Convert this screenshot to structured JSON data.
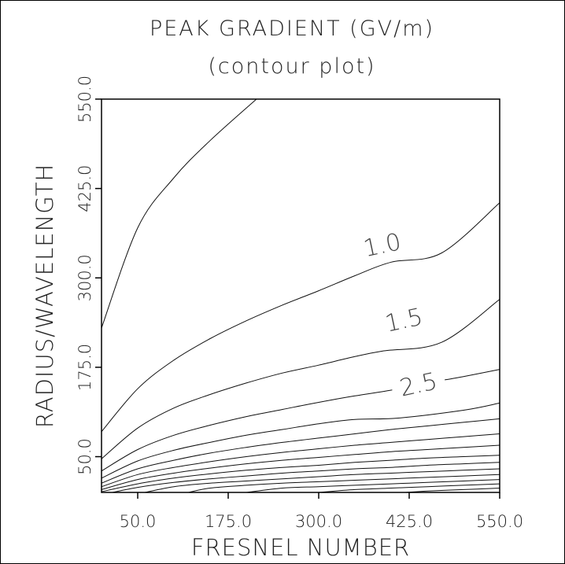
{
  "chart_data": {
    "type": "contour",
    "title": "PEAK GRADIENT (GV/m)",
    "subtitle": "(contour plot)",
    "xlabel": "FRESNEL NUMBER",
    "ylabel": "RADIUS/WAVELENGTH",
    "xlim": [
      0,
      550
    ],
    "ylim": [
      0,
      550
    ],
    "xticks": [
      "50.0",
      "175.0",
      "300.0",
      "425.0",
      "550.0"
    ],
    "yticks": [
      "50.0",
      "175.0",
      "300.0",
      "425.0",
      "550.0"
    ],
    "xtick_values": [
      50,
      175,
      300,
      425,
      550
    ],
    "ytick_values": [
      50,
      175,
      300,
      425,
      550
    ],
    "grid": false,
    "contour_labels": [
      {
        "text": "1.0",
        "x": 390,
        "y": 335
      },
      {
        "text": "1.5",
        "x": 420,
        "y": 230
      },
      {
        "text": "2.5",
        "x": 440,
        "y": 140
      }
    ],
    "contours": [
      {
        "points": [
          [
            0,
            230
          ],
          [
            50,
            370
          ],
          [
            100,
            440
          ],
          [
            150,
            492
          ],
          [
            214,
            550
          ]
        ]
      },
      {
        "points": [
          [
            0,
            85
          ],
          [
            50,
            145
          ],
          [
            100,
            185
          ],
          [
            150,
            215
          ],
          [
            200,
            240
          ],
          [
            250,
            262
          ],
          [
            300,
            282
          ],
          [
            350,
            303
          ],
          [
            400,
            322
          ],
          [
            470,
            335
          ],
          [
            550,
            405
          ]
        ]
      },
      {
        "points": [
          [
            0,
            47
          ],
          [
            50,
            90
          ],
          [
            100,
            118
          ],
          [
            150,
            137
          ],
          [
            200,
            153
          ],
          [
            250,
            167
          ],
          [
            300,
            178
          ],
          [
            350,
            190
          ],
          [
            390,
            198
          ],
          [
            470,
            210
          ],
          [
            550,
            270
          ]
        ]
      },
      {
        "points": [
          [
            0,
            30
          ],
          [
            50,
            60
          ],
          [
            100,
            80
          ],
          [
            150,
            94
          ],
          [
            200,
            106
          ],
          [
            250,
            116
          ],
          [
            300,
            126
          ],
          [
            350,
            135
          ],
          [
            400,
            143
          ],
          [
            450,
            153
          ],
          [
            500,
            162
          ],
          [
            550,
            172
          ]
        ]
      },
      {
        "points": [
          [
            0,
            20
          ],
          [
            50,
            44
          ],
          [
            100,
            59
          ],
          [
            150,
            70
          ],
          [
            200,
            80
          ],
          [
            250,
            88
          ],
          [
            300,
            96
          ],
          [
            350,
            102
          ],
          [
            410,
            104
          ],
          [
            500,
            115
          ],
          [
            550,
            125
          ]
        ]
      },
      {
        "points": [
          [
            0,
            13
          ],
          [
            50,
            33
          ],
          [
            100,
            45
          ],
          [
            150,
            55
          ],
          [
            200,
            63
          ],
          [
            250,
            70
          ],
          [
            300,
            76
          ],
          [
            350,
            82
          ],
          [
            400,
            88
          ],
          [
            450,
            93
          ],
          [
            500,
            98
          ],
          [
            550,
            103
          ]
        ]
      },
      {
        "points": [
          [
            0,
            8
          ],
          [
            50,
            25
          ],
          [
            100,
            35
          ],
          [
            150,
            43
          ],
          [
            200,
            50
          ],
          [
            250,
            56
          ],
          [
            300,
            61
          ],
          [
            350,
            66
          ],
          [
            400,
            70
          ],
          [
            450,
            74
          ],
          [
            500,
            78
          ],
          [
            550,
            82
          ]
        ]
      },
      {
        "points": [
          [
            0,
            4
          ],
          [
            50,
            18
          ],
          [
            100,
            27
          ],
          [
            150,
            34
          ],
          [
            200,
            40
          ],
          [
            250,
            45
          ],
          [
            300,
            49
          ],
          [
            350,
            53
          ],
          [
            400,
            57
          ],
          [
            450,
            60
          ],
          [
            500,
            63
          ],
          [
            550,
            66
          ]
        ]
      },
      {
        "points": [
          [
            0,
            1
          ],
          [
            50,
            12
          ],
          [
            100,
            20
          ],
          [
            150,
            26
          ],
          [
            200,
            31
          ],
          [
            250,
            35
          ],
          [
            300,
            38
          ],
          [
            350,
            42
          ],
          [
            400,
            45
          ],
          [
            450,
            48
          ],
          [
            500,
            50
          ],
          [
            550,
            52
          ]
        ]
      },
      {
        "points": [
          [
            15,
            0
          ],
          [
            50,
            7
          ],
          [
            100,
            14
          ],
          [
            150,
            19
          ],
          [
            200,
            23
          ],
          [
            250,
            27
          ],
          [
            300,
            30
          ],
          [
            350,
            33
          ],
          [
            400,
            35
          ],
          [
            450,
            38
          ],
          [
            500,
            40
          ],
          [
            550,
            42
          ]
        ]
      },
      {
        "points": [
          [
            60,
            0
          ],
          [
            100,
            8
          ],
          [
            150,
            13
          ],
          [
            200,
            16
          ],
          [
            250,
            19
          ],
          [
            300,
            22
          ],
          [
            350,
            25
          ],
          [
            400,
            27
          ],
          [
            450,
            29
          ],
          [
            500,
            31
          ],
          [
            550,
            33
          ]
        ]
      },
      {
        "points": [
          [
            120,
            0
          ],
          [
            150,
            6
          ],
          [
            200,
            10
          ],
          [
            250,
            13
          ],
          [
            300,
            15
          ],
          [
            350,
            17
          ],
          [
            400,
            19
          ],
          [
            450,
            21
          ],
          [
            500,
            23
          ],
          [
            550,
            25
          ]
        ]
      },
      {
        "points": [
          [
            200,
            0
          ],
          [
            250,
            6
          ],
          [
            300,
            8
          ],
          [
            350,
            10
          ],
          [
            400,
            12
          ],
          [
            450,
            14
          ],
          [
            500,
            16
          ],
          [
            550,
            18
          ]
        ]
      },
      {
        "points": [
          [
            300,
            0
          ],
          [
            350,
            4
          ],
          [
            400,
            6
          ],
          [
            450,
            8
          ],
          [
            500,
            10
          ],
          [
            550,
            12
          ]
        ]
      },
      {
        "points": [
          [
            420,
            0
          ],
          [
            450,
            2
          ],
          [
            500,
            4
          ],
          [
            550,
            6
          ]
        ]
      }
    ]
  }
}
